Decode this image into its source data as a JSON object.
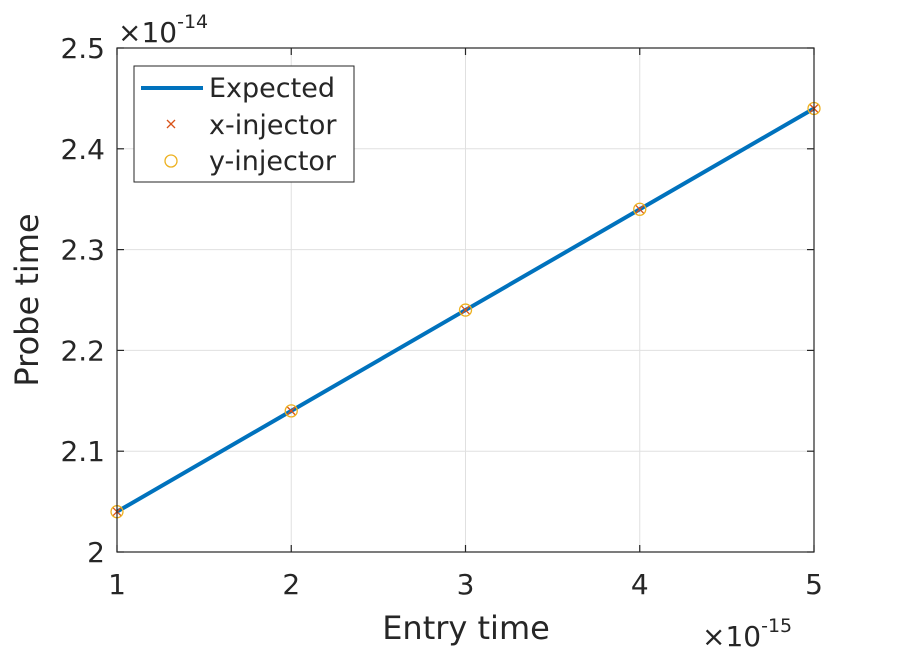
{
  "chart_data": {
    "type": "line",
    "title": "",
    "xlabel": "Entry time",
    "ylabel": "Probe time",
    "x_multiplier": {
      "base": "×10",
      "exponent": "-15"
    },
    "y_multiplier": {
      "base": "×10",
      "exponent": "-14"
    },
    "xlim": [
      1e-15,
      5e-15
    ],
    "ylim": [
      2e-14,
      2.5e-14
    ],
    "x_ticks": [
      1e-15,
      2e-15,
      3e-15,
      4e-15,
      5e-15
    ],
    "x_tick_labels": [
      "1",
      "2",
      "3",
      "4",
      "5"
    ],
    "y_ticks": [
      2e-14,
      2.1e-14,
      2.2e-14,
      2.3e-14,
      2.4e-14,
      2.5e-14
    ],
    "y_tick_labels": [
      "2",
      "2.1",
      "2.2",
      "2.3",
      "2.4",
      "2.5"
    ],
    "grid": true,
    "legend_position": "top-left",
    "series": [
      {
        "name": "Expected",
        "style": "line",
        "color": "#0072BD",
        "x": [
          1e-15,
          2e-15,
          3e-15,
          4e-15,
          5e-15
        ],
        "y": [
          2.04e-14,
          2.14e-14,
          2.24e-14,
          2.34e-14,
          2.44e-14
        ]
      },
      {
        "name": "x-injector",
        "style": "marker-x",
        "color": "#D95319",
        "x": [
          1e-15,
          2e-15,
          3e-15,
          4e-15,
          5e-15
        ],
        "y": [
          2.04e-14,
          2.14e-14,
          2.24e-14,
          2.34e-14,
          2.44e-14
        ]
      },
      {
        "name": "y-injector",
        "style": "marker-o",
        "color": "#EDB120",
        "x": [
          1e-15,
          2e-15,
          3e-15,
          4e-15,
          5e-15
        ],
        "y": [
          2.04e-14,
          2.14e-14,
          2.24e-14,
          2.34e-14,
          2.44e-14
        ]
      }
    ]
  }
}
